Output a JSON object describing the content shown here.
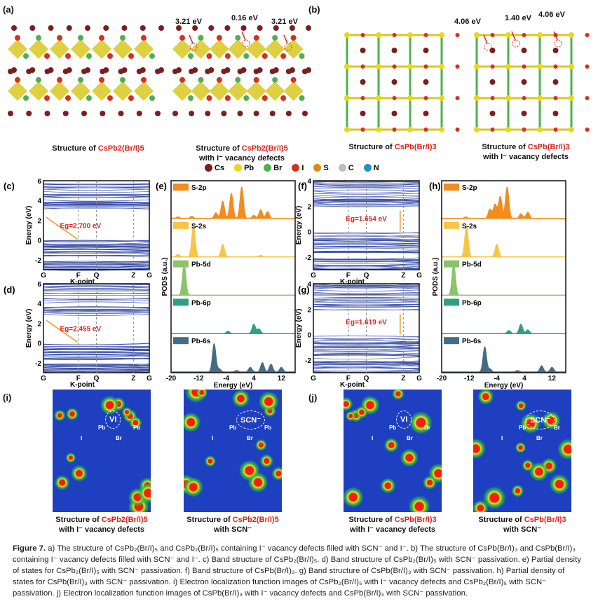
{
  "panels": {
    "a": {
      "label": "(a)",
      "left_title": "Structure of ",
      "left_formula": "CsPb2(Br/I)5",
      "right_title": "Structure of ",
      "right_formula": "CsPb2(Br/I)5",
      "right_sub": "with I⁻ vacancy defects",
      "energies": [
        "3.21 eV",
        "0.16 eV",
        "3.21 eV"
      ]
    },
    "b": {
      "label": "(b)",
      "left_title": "Structure of ",
      "left_formula": "CsPb(Br/I)3",
      "right_title": "Structure of ",
      "right_formula": "CsPb(Br/I)3",
      "right_sub": "with I⁻ vacancy defects",
      "energies": [
        "4.06 eV",
        "1.40 eV",
        "4.06 eV"
      ]
    },
    "i": {
      "label": "(i)",
      "left_title": "Structure of ",
      "left_formula": "CsPb2(Br/I)5",
      "left_sub": "with I⁻ vacancy defects",
      "right_title": "Structure of ",
      "right_formula": "CsPb2(Br/I)5",
      "right_sub": "with SCN⁻",
      "tags_left": [
        "VI",
        "I",
        "Pb",
        "Br",
        "Pb"
      ],
      "tags_right": [
        "SCN⁻",
        "I",
        "Pb",
        "Br",
        "Pb"
      ]
    },
    "j": {
      "label": "(j)",
      "left_title": "Structure of ",
      "left_formula": "CsPb(Br/I)3",
      "left_sub": "with I⁻ vacancy defects",
      "right_title": "Structure of ",
      "right_formula": "CsPb(Br/I)3",
      "right_sub": "with SCN⁻",
      "tags_left": [
        "VI",
        "I",
        "Pb",
        "Br",
        "Br"
      ],
      "tags_right": [
        "SCN⁻",
        "I",
        "Pb",
        "Br",
        "Br"
      ]
    }
  },
  "legend": [
    {
      "name": "Cs",
      "color": "#7a1f1f"
    },
    {
      "name": "Pb",
      "color": "#e8d81a"
    },
    {
      "name": "Br",
      "color": "#4fb04f"
    },
    {
      "name": "I",
      "color": "#d9301e"
    },
    {
      "name": "S",
      "color": "#d98a1a"
    },
    {
      "name": "C",
      "color": "#bdbdbd"
    },
    {
      "name": "N",
      "color": "#1e90d0"
    }
  ],
  "chart_data": [
    {
      "type": "line",
      "id": "c",
      "label": "(c)",
      "title": "Band structure CsPb2(Br/I)5",
      "ylabel": "Energy (eV)",
      "xlabel": "K-point",
      "ylim": [
        -3,
        6
      ],
      "yticks": [
        "6",
        "4",
        "2",
        "0",
        "-2"
      ],
      "xticks": [
        "G",
        "F",
        "Q",
        "Z",
        "G"
      ],
      "gap_label": "Eg=2.700 eV",
      "gap": 2.7,
      "cbm": 2.7,
      "vbm": 0
    },
    {
      "type": "line",
      "id": "d",
      "label": "(d)",
      "title": "Band structure CsPb2(Br/I)5 with SCN⁻",
      "ylabel": "Energy (eV)",
      "xlabel": "K-point",
      "ylim": [
        -3,
        6
      ],
      "yticks": [
        "6",
        "4",
        "2",
        "0",
        "-2"
      ],
      "xticks": [
        "G",
        "F",
        "Q",
        "Z",
        "G"
      ],
      "gap_label": "Eg=2.455 eV",
      "gap": 2.455,
      "cbm": 2.455,
      "vbm": 0
    },
    {
      "type": "line",
      "id": "f",
      "label": "(f)",
      "title": "Band structure CsPb(Br/I)3",
      "ylabel": "Energy (eV)",
      "xlabel": "K-point",
      "ylim": [
        -3,
        4
      ],
      "yticks": [
        "4",
        "2",
        "0",
        "-2"
      ],
      "xticks": [
        "G",
        "F",
        "Q",
        "Z",
        "G"
      ],
      "gap_label": "Eg=1.654 eV",
      "gap": 1.654,
      "cbm": 1.654,
      "vbm": 0
    },
    {
      "type": "line",
      "id": "g",
      "label": "(g)",
      "title": "Band structure CsPb(Br/I)3 with SCN⁻",
      "ylabel": "Energy (eV)",
      "xlabel": "K-point",
      "ylim": [
        -3,
        4
      ],
      "yticks": [
        "4",
        "2",
        "0",
        "-2"
      ],
      "xticks": [
        "G",
        "F",
        "Q",
        "Z",
        "G"
      ],
      "gap_label": "Eg=1.619 eV",
      "gap": 1.619,
      "cbm": 1.619,
      "vbm": 0
    },
    {
      "type": "area",
      "id": "e",
      "label": "(e)",
      "ylabel": "PODS (a.u.)",
      "xlabel": "Energy (eV)",
      "xlim": [
        -20,
        16
      ],
      "xticks": [
        "-20",
        "-12",
        "-4",
        "4",
        "12"
      ],
      "series": [
        {
          "name": "S-2p",
          "color": "#f28c1c",
          "peaks": [
            [
              -18,
              0.05
            ],
            [
              -14,
              0.07
            ],
            [
              -7,
              0.18
            ],
            [
              -5,
              0.55
            ],
            [
              -2.5,
              0.8
            ],
            [
              0.5,
              1.0
            ],
            [
              4,
              0.1
            ],
            [
              6,
              0.28
            ],
            [
              8,
              0.22
            ]
          ]
        },
        {
          "name": "S-2s",
          "color": "#f7c548",
          "peaks": [
            [
              -18,
              0.08
            ],
            [
              -13.5,
              1.0
            ],
            [
              -5,
              0.4
            ],
            [
              6,
              0.05
            ]
          ]
        },
        {
          "name": "Pb-5d",
          "color": "#8dc26a",
          "peaks": [
            [
              -16.2,
              1.0
            ]
          ]
        },
        {
          "name": "Pb-6p",
          "color": "#2ea27f",
          "peaks": [
            [
              -3.5,
              0.08
            ],
            [
              4,
              0.3
            ],
            [
              5.5,
              0.15
            ]
          ]
        },
        {
          "name": "Pb-6s",
          "color": "#466b86",
          "peaks": [
            [
              -7.5,
              0.9
            ],
            [
              -6,
              0.1
            ],
            [
              -1,
              0.05
            ],
            [
              3,
              0.15
            ],
            [
              6.5,
              0.3
            ],
            [
              9,
              0.25
            ],
            [
              12,
              0.15
            ]
          ]
        }
      ]
    },
    {
      "type": "area",
      "id": "h",
      "label": "(h)",
      "ylabel": "PODS (a.u.)",
      "xlabel": "Energy (eV)",
      "xlim": [
        -20,
        16
      ],
      "xticks": [
        "-20",
        "-12",
        "-4",
        "4",
        "12"
      ],
      "series": [
        {
          "name": "S-2p",
          "color": "#f28c1c",
          "peaks": [
            [
              -13,
              0.05
            ],
            [
              -6,
              0.3
            ],
            [
              -4.5,
              0.45
            ],
            [
              -3,
              0.7
            ],
            [
              -1,
              1.0
            ],
            [
              3,
              0.15
            ],
            [
              5,
              0.2
            ]
          ]
        },
        {
          "name": "S-2s",
          "color": "#f7c548",
          "peaks": [
            [
              -12.8,
              1.0
            ],
            [
              -4,
              0.4
            ]
          ]
        },
        {
          "name": "Pb-5d",
          "color": "#8dc26a",
          "peaks": [
            [
              -16.5,
              1.0
            ]
          ]
        },
        {
          "name": "Pb-6p",
          "color": "#2ea27f",
          "peaks": [
            [
              -0.5,
              0.1
            ],
            [
              3,
              0.3
            ],
            [
              5,
              0.12
            ]
          ]
        },
        {
          "name": "Pb-6s",
          "color": "#466b86",
          "peaks": [
            [
              -7.5,
              0.8
            ],
            [
              -6,
              0.1
            ],
            [
              2,
              0.05
            ],
            [
              9,
              0.2
            ],
            [
              12,
              0.15
            ]
          ]
        }
      ]
    }
  ],
  "caption": {
    "figure": "Figure 7.",
    "text": " a) The structure of CsPb₂(Br/I)₅ and CsPb₂(Br/I)₅ containing I⁻ vacancy defects filled with SCN⁻ and I⁻. b) The structure of CsPb(Br/I)₃ and CsPb(Br/I)₃ containing I⁻ vacancy defects filled with SCN⁻ and I⁻. c) Band structure of CsPb₂(Br/I)₅. d) Band structure of CsPb₂(Br/I)₅ with SCN⁻ passivation. e) Partial density of states for CsPb₂(Br/I)₅ with SCN⁻ passivation. f) Band structure of CsPb(Br/I)₃. g) Band structure of CsPb(Br/I)₃ with SCN⁻ passivation. h) Partial density of states for CsPb(Br/I)₃ with SCN⁻ passivation. i) Electron localization function images of CsPb₂(Br/I)₅ with I⁻ vacancy defects and CsPb₂(Br/I)₅ with SCN⁻ passivation. j) Electron localization function images of CsPb(Br/I)₃ with I⁻ vacancy defects and CsPb(Br/I)₃ with SCN⁻ passivation."
  }
}
